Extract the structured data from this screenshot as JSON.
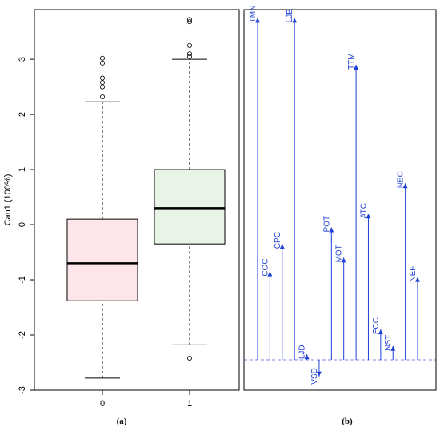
{
  "chart_data": [
    {
      "type": "boxplot",
      "ylabel": "Can1 (100%)",
      "ylim": [
        -3.0,
        3.9
      ],
      "yticks": [
        -3,
        -2,
        -1,
        0,
        1,
        2,
        3
      ],
      "categories": [
        "0",
        "1"
      ],
      "panel_label": "(a)",
      "boxes": [
        {
          "category": "0",
          "whisker_low": -2.78,
          "q1": -1.38,
          "median": -0.7,
          "q3": 0.1,
          "whisker_high": 2.23,
          "outliers": [
            2.32,
            2.5,
            2.58,
            2.66,
            2.93,
            3.02
          ],
          "fill": "#fce6ea"
        },
        {
          "category": "1",
          "whisker_low": -2.18,
          "q1": -0.35,
          "median": 0.3,
          "q3": 1.0,
          "whisker_high": 3.0,
          "outliers": [
            -2.42,
            3.05,
            3.1,
            3.25,
            3.68,
            3.72
          ],
          "fill": "#e8f5e6"
        }
      ]
    },
    {
      "type": "bar",
      "panel_label": "(b)",
      "baseline": -2.45,
      "color": "#1f3fd6",
      "categories": [
        "TMN",
        "COC",
        "CPC",
        "LJB",
        "LJD",
        "VSD",
        "POT",
        "MOT",
        "TTM",
        "ATC",
        "ECC",
        "NST",
        "NEC",
        "NEF"
      ],
      "values": [
        3.75,
        -0.85,
        -0.35,
        3.75,
        -2.35,
        -2.75,
        -0.05,
        -0.6,
        2.9,
        0.2,
        -1.9,
        -2.2,
        0.75,
        -0.95
      ]
    }
  ]
}
